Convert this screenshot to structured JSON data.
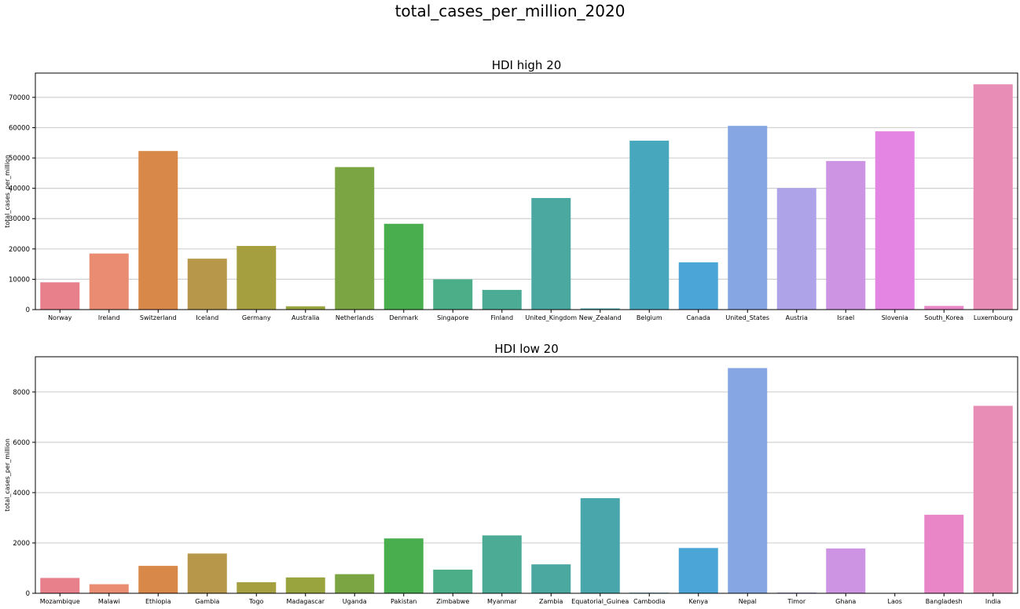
{
  "figure": {
    "suptitle": "total_cases_per_million_2020"
  },
  "chart_data": [
    {
      "type": "bar",
      "title": "HDI high 20",
      "xlabel": "",
      "ylabel": "total_cases_per_million",
      "ylim": [
        0,
        78000
      ],
      "yticks": [
        0,
        10000,
        20000,
        30000,
        40000,
        50000,
        60000,
        70000
      ],
      "grid": "horizontal",
      "categories": [
        "Norway",
        "Ireland",
        "Switzerland",
        "Iceland",
        "Germany",
        "Australia",
        "Netherlands",
        "Denmark",
        "Singapore",
        "Finland",
        "United_Kingdom",
        "New_Zealand",
        "Belgium",
        "Canada",
        "United_States",
        "Austria",
        "Israel",
        "Slovenia",
        "South_Korea",
        "Luxembourg"
      ],
      "values": [
        9000,
        18500,
        52300,
        16800,
        21000,
        1100,
        47000,
        28300,
        10000,
        6500,
        36800,
        400,
        55700,
        15600,
        60600,
        40100,
        49000,
        58800,
        1200,
        74300
      ],
      "colors": [
        "#e8808c",
        "#e98c72",
        "#d8894a",
        "#b7974a",
        "#a69f3f",
        "#9aa43f",
        "#7ba542",
        "#48ae4e",
        "#4bae88",
        "#4bab94",
        "#4aa8a1",
        "#49a7ac",
        "#46a7bd",
        "#4ba6d7",
        "#85a6e2",
        "#aea2e8",
        "#cd94e4",
        "#e485e3",
        "#e886c8",
        "#e88db5"
      ]
    },
    {
      "type": "bar",
      "title": "HDI low 20",
      "xlabel": "",
      "ylabel": "total_cases_per_million",
      "ylim": [
        0,
        9400
      ],
      "yticks": [
        0,
        2000,
        4000,
        6000,
        8000
      ],
      "grid": "horizontal",
      "categories": [
        "Mozambique",
        "Malawi",
        "Ethiopia",
        "Gambia",
        "Togo",
        "Madagascar",
        "Uganda",
        "Pakistan",
        "Zimbabwe",
        "Myanmar",
        "Zambia",
        "Equatorial_Guinea",
        "Cambodia",
        "Kenya",
        "Nepal",
        "Timor",
        "Ghana",
        "Laos",
        "Bangladesh",
        "India"
      ],
      "values": [
        610,
        360,
        1090,
        1580,
        440,
        630,
        760,
        2180,
        940,
        2300,
        1150,
        3780,
        25,
        1800,
        8950,
        30,
        1780,
        5,
        3120,
        7450
      ],
      "colors": [
        "#e8808c",
        "#e98c72",
        "#d8894a",
        "#b7974a",
        "#a69f3f",
        "#9aa43f",
        "#7ba542",
        "#48ae4e",
        "#4bae88",
        "#4bab94",
        "#4aa8a1",
        "#49a7ac",
        "#46a7bd",
        "#4ba6d7",
        "#85a6e2",
        "#aea2e8",
        "#cd94e4",
        "#e485e3",
        "#e886c8",
        "#e88db5"
      ]
    }
  ]
}
